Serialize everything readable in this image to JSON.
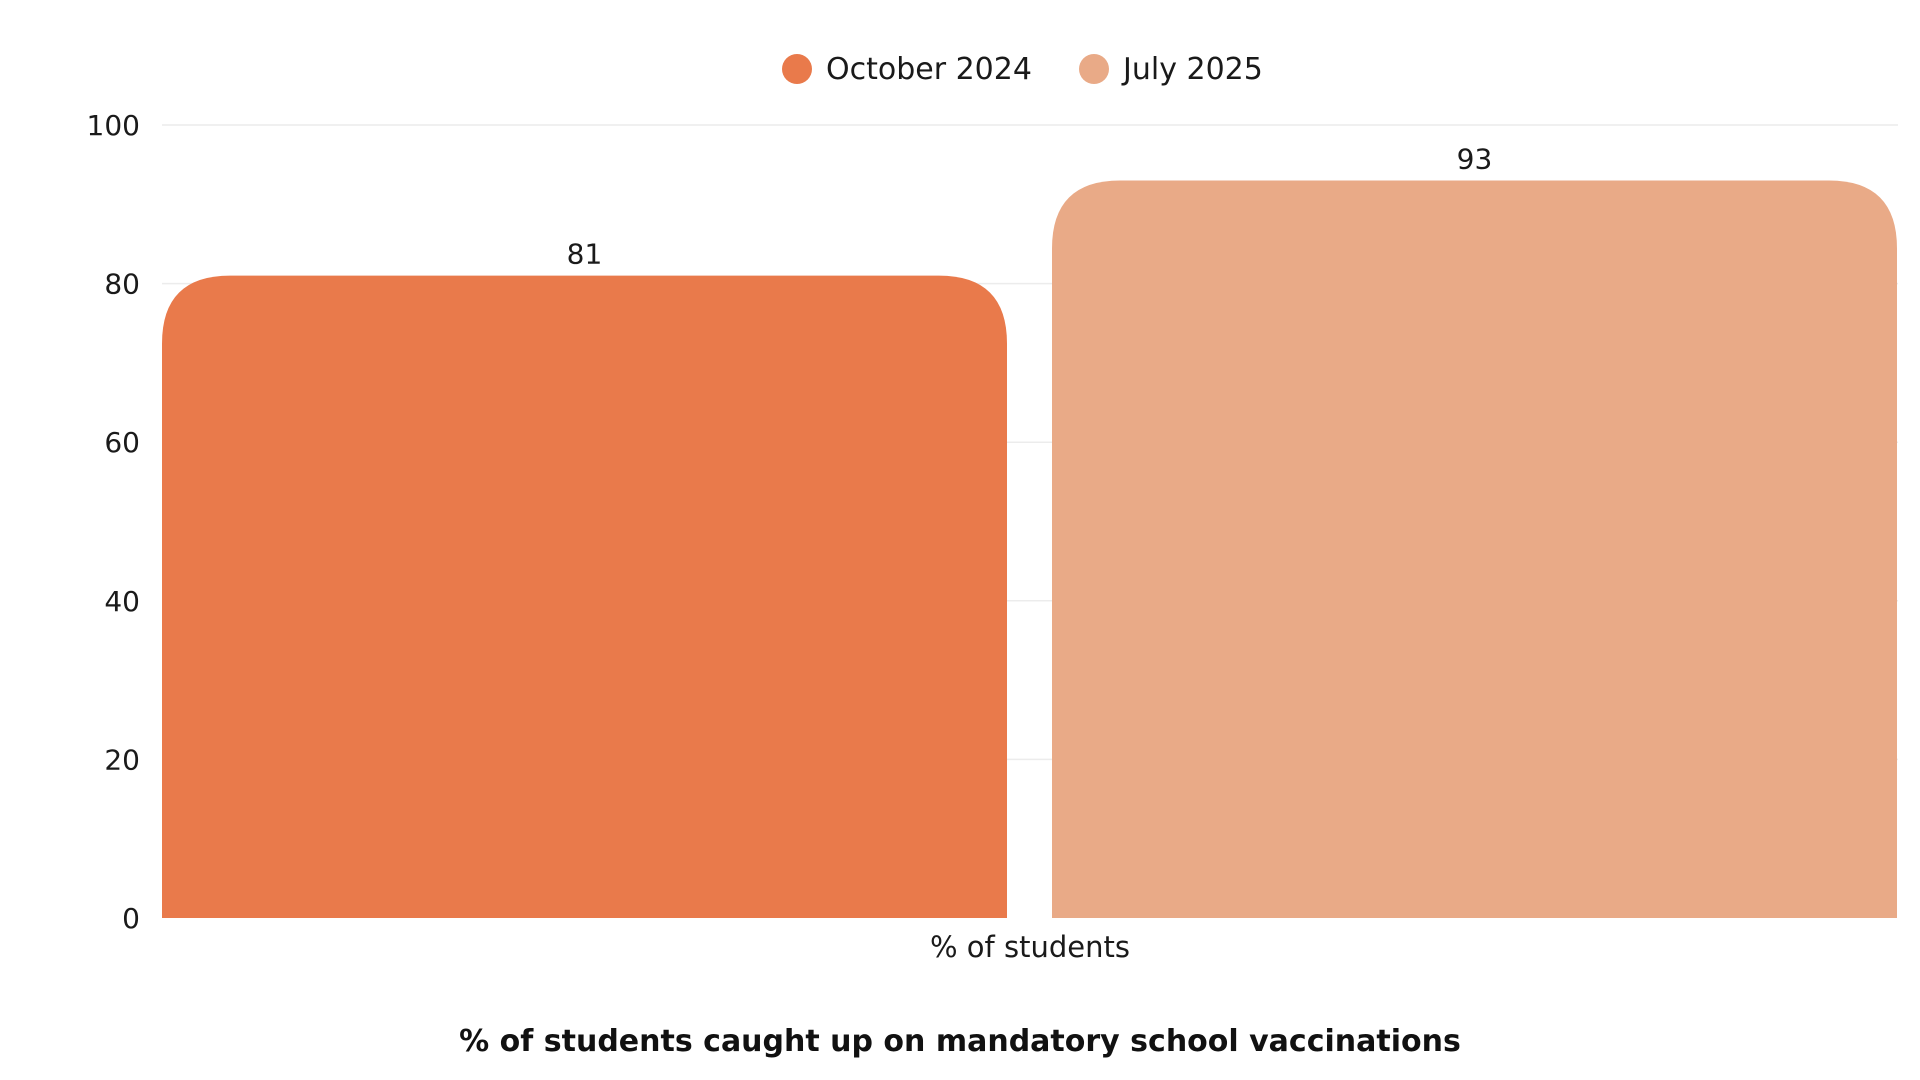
{
  "chart_data": {
    "type": "bar",
    "categories": [
      "% of students"
    ],
    "series": [
      {
        "name": "October 2024",
        "values": [
          81
        ],
        "color": "#E97A4B"
      },
      {
        "name": "July 2025",
        "values": [
          93
        ],
        "color": "#E9AA87"
      }
    ],
    "ylim": [
      0,
      100
    ],
    "yticks": [
      0,
      20,
      40,
      60,
      80,
      100
    ],
    "grid": true,
    "legend_position": "top-center",
    "caption": "% of students caught up on mandatory school vaccinations"
  }
}
